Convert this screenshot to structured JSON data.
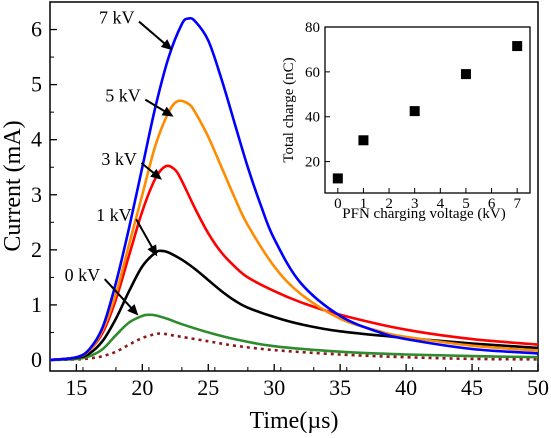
{
  "chart_data": [
    {
      "type": "line",
      "xlabel": "Time(µs)",
      "ylabel": "Current (mA)",
      "xlim": [
        13,
        50
      ],
      "ylim": [
        -0.2,
        6.5
      ],
      "xticks": [
        15,
        20,
        25,
        30,
        35,
        40,
        45,
        50
      ],
      "yticks": [
        0,
        1,
        2,
        3,
        4,
        5,
        6
      ],
      "grid": false,
      "series": [
        {
          "name": "",
          "color": "#8b1a1a",
          "dashed": true,
          "x": [
            13,
            15,
            16,
            17,
            18,
            19,
            20,
            21,
            21.5,
            22,
            23,
            25,
            27,
            30,
            35,
            40,
            45,
            50
          ],
          "y": [
            0,
            0.01,
            0.03,
            0.07,
            0.15,
            0.28,
            0.4,
            0.47,
            0.48,
            0.46,
            0.42,
            0.34,
            0.26,
            0.18,
            0.1,
            0.05,
            0.02,
            0.01
          ]
        },
        {
          "name": "0 kV",
          "color": "#2e8b2e",
          "dashed": false,
          "x": [
            13,
            15,
            16,
            17,
            18,
            19,
            20,
            20.5,
            21,
            22,
            23,
            25,
            27,
            30,
            35,
            40,
            45,
            50
          ],
          "y": [
            0,
            0.02,
            0.07,
            0.2,
            0.45,
            0.68,
            0.8,
            0.82,
            0.81,
            0.74,
            0.65,
            0.5,
            0.38,
            0.25,
            0.15,
            0.1,
            0.07,
            0.05
          ]
        },
        {
          "name": "1 kV",
          "color": "#000000",
          "dashed": false,
          "x": [
            13,
            15,
            16,
            17,
            18,
            19,
            20,
            21,
            21.5,
            22,
            23,
            24,
            25,
            26,
            27,
            28,
            30,
            32,
            35,
            40,
            45,
            50
          ],
          "y": [
            0,
            0.04,
            0.12,
            0.35,
            0.75,
            1.25,
            1.7,
            1.95,
            1.98,
            1.95,
            1.82,
            1.65,
            1.45,
            1.25,
            1.08,
            0.95,
            0.78,
            0.65,
            0.52,
            0.4,
            0.3,
            0.22
          ]
        },
        {
          "name": "3 kV",
          "color": "#ff0000",
          "dashed": false,
          "x": [
            13,
            15,
            16,
            17,
            18,
            19,
            20,
            21,
            21.8,
            22.5,
            23,
            24,
            25,
            26,
            27,
            28,
            30,
            32,
            35,
            40,
            45,
            50
          ],
          "y": [
            0,
            0.05,
            0.18,
            0.5,
            1.1,
            1.9,
            2.7,
            3.3,
            3.52,
            3.45,
            3.25,
            2.75,
            2.3,
            1.95,
            1.7,
            1.5,
            1.25,
            1.05,
            0.82,
            0.55,
            0.38,
            0.28
          ]
        },
        {
          "name": "5 kV",
          "color": "#ff8c00",
          "dashed": false,
          "x": [
            13,
            15,
            16,
            17,
            18,
            19,
            20,
            21,
            22,
            22.7,
            23.5,
            24,
            25,
            26,
            27,
            28,
            30,
            32,
            35,
            38,
            40,
            45,
            50
          ],
          "y": [
            0,
            0.05,
            0.18,
            0.55,
            1.2,
            2.1,
            3.0,
            3.9,
            4.5,
            4.7,
            4.65,
            4.5,
            4.05,
            3.5,
            2.95,
            2.45,
            1.7,
            1.2,
            0.75,
            0.52,
            0.42,
            0.26,
            0.17
          ]
        },
        {
          "name": "7 kV",
          "color": "#0000ff",
          "dashed": false,
          "x": [
            13,
            15,
            16,
            17,
            18,
            19,
            20,
            21,
            22,
            23,
            23.5,
            24,
            25,
            26,
            27,
            28,
            29,
            30,
            32,
            35,
            38,
            40,
            45,
            50
          ],
          "y": [
            0,
            0.05,
            0.2,
            0.6,
            1.4,
            2.4,
            3.5,
            4.6,
            5.5,
            6.1,
            6.2,
            6.15,
            5.8,
            5.1,
            4.3,
            3.5,
            2.8,
            2.2,
            1.4,
            0.8,
            0.5,
            0.38,
            0.2,
            0.12
          ]
        }
      ],
      "annotations": [
        {
          "text": "7 kV",
          "series": "7 kV",
          "x": 22.4,
          "y": 5.6
        },
        {
          "text": "5 kV",
          "series": "5 kV",
          "x": 22.5,
          "y": 4.4
        },
        {
          "text": "3 kV",
          "series": "3 kV",
          "x": 21.6,
          "y": 3.25
        },
        {
          "text": "1 kV",
          "series": "1 kV",
          "x": 21.2,
          "y": 1.85
        },
        {
          "text": "0 kV",
          "series": "0 kV",
          "x": 19.8,
          "y": 0.78
        }
      ]
    },
    {
      "type": "scatter",
      "xlabel": "PFN charging voltage (kV)",
      "ylabel": "Total charge (nC)",
      "xlim": [
        -0.5,
        7.5
      ],
      "ylim": [
        6,
        80
      ],
      "xticks": [
        0,
        1,
        2,
        3,
        4,
        5,
        6,
        7
      ],
      "yticks": [
        20,
        40,
        60,
        80
      ],
      "marker": "square",
      "color": "#000000",
      "x": [
        0,
        1,
        3,
        5,
        7
      ],
      "y": [
        12.5,
        29.5,
        42.5,
        59,
        71.5
      ]
    }
  ]
}
